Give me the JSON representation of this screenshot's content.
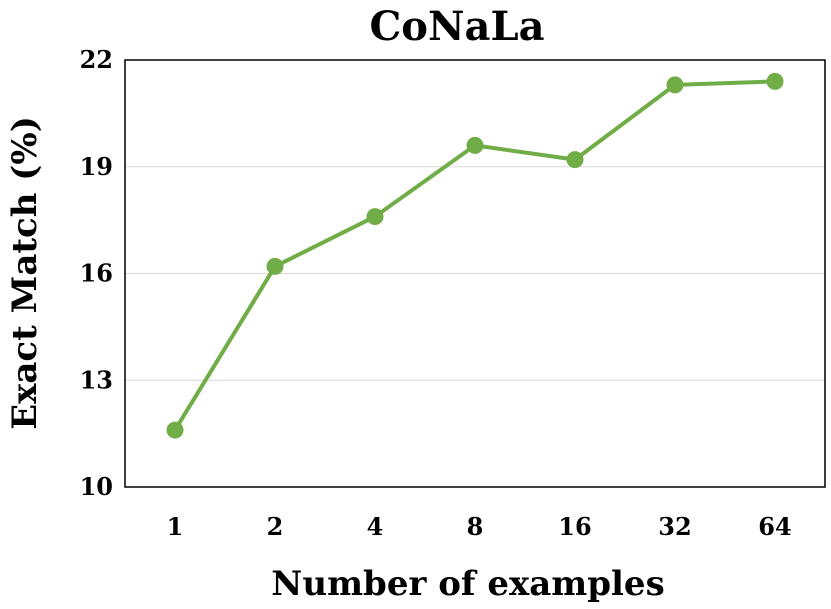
{
  "chart_data": {
    "type": "line",
    "title": "CoNaLa",
    "xlabel": "Number of examples",
    "ylabel": "Exact Match (%)",
    "categories": [
      "1",
      "2",
      "4",
      "8",
      "16",
      "32",
      "64"
    ],
    "series": [
      {
        "values": [
          11.6,
          16.2,
          17.6,
          19.6,
          19.2,
          21.3,
          21.4
        ]
      }
    ],
    "ylim": [
      10,
      22
    ],
    "yticks": [
      "10",
      "13",
      "16",
      "19",
      "22"
    ],
    "grid": true,
    "line_color": "#70AD47"
  }
}
